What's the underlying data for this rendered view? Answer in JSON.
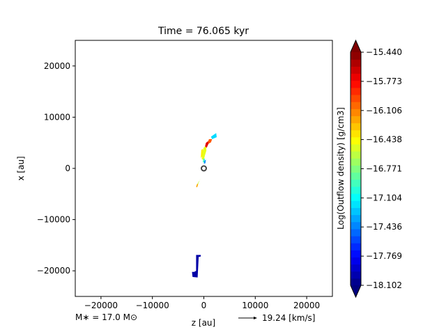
{
  "chart_data": {
    "type": "contour",
    "title": "Time = 76.065 kyr",
    "xlabel": "z [au]",
    "ylabel": "x [au]",
    "xlim": [
      -25000,
      25000
    ],
    "ylim": [
      -25000,
      25000
    ],
    "xticks": [
      -20000,
      -10000,
      0,
      10000,
      20000
    ],
    "yticks": [
      -20000,
      -10000,
      0,
      10000,
      20000
    ],
    "xtick_labels": [
      "−20000",
      "−10000",
      "0",
      "10000",
      "20000"
    ],
    "ytick_labels": [
      "−20000",
      "−10000",
      "0",
      "10000",
      "20000"
    ],
    "grid": false,
    "colorbar": {
      "label": "Log(Outflow density) [g/cm3]",
      "min": -18.102,
      "max": -15.44,
      "colormap": "jet",
      "levels": 33,
      "ticks": [
        -18.102,
        -17.769,
        -17.436,
        -17.104,
        -16.771,
        -16.438,
        -16.106,
        -15.773,
        -15.44
      ],
      "tick_labels": [
        "−18.102",
        "−17.769",
        "−17.436",
        "−17.104",
        "−16.771",
        "−16.438",
        "−16.106",
        "−15.773",
        "−15.440"
      ]
    },
    "star": {
      "z": 0,
      "x": 0
    },
    "outflow_regions": [
      {
        "value": -17.2,
        "points": [
          [
            1400,
            6200
          ],
          [
            2400,
            6900
          ],
          [
            2500,
            6100
          ],
          [
            1600,
            5700
          ]
        ]
      },
      {
        "value": -16.0,
        "points": [
          [
            700,
            5000
          ],
          [
            1000,
            5700
          ],
          [
            1600,
            5700
          ],
          [
            1400,
            5100
          ],
          [
            900,
            4800
          ]
        ]
      },
      {
        "value": -15.7,
        "points": [
          [
            200,
            4200
          ],
          [
            400,
            5000
          ],
          [
            800,
            5300
          ],
          [
            900,
            4800
          ],
          [
            600,
            4100
          ],
          [
            300,
            3900
          ]
        ]
      },
      {
        "value": -16.5,
        "points": [
          [
            -400,
            1800
          ],
          [
            -300,
            3200
          ],
          [
            0,
            4100
          ],
          [
            400,
            4300
          ],
          [
            500,
            3500
          ],
          [
            200,
            2500
          ],
          [
            0,
            1600
          ]
        ]
      },
      {
        "value": -16.4,
        "points": [
          [
            -600,
            2000
          ],
          [
            -500,
            3600
          ],
          [
            -200,
            3800
          ],
          [
            -300,
            2400
          ]
        ]
      },
      {
        "value": -16.95,
        "points": [
          [
            -200,
            1200
          ],
          [
            -100,
            1900
          ],
          [
            200,
            1900
          ],
          [
            100,
            1200
          ]
        ]
      },
      {
        "value": -17.4,
        "points": [
          [
            0,
            900
          ],
          [
            100,
            1500
          ],
          [
            400,
            1700
          ],
          [
            300,
            1000
          ]
        ]
      },
      {
        "value": -16.6,
        "points": [
          [
            -1500,
            -3500
          ],
          [
            -1000,
            -2600
          ],
          [
            -500,
            -1900
          ],
          [
            -800,
            -2300
          ],
          [
            -1200,
            -3300
          ]
        ]
      },
      {
        "value": -16.2,
        "points": [
          [
            -1500,
            -3600
          ],
          [
            -1300,
            -3000
          ],
          [
            -1100,
            -3100
          ],
          [
            -1300,
            -3700
          ]
        ]
      },
      {
        "value": -18.0,
        "points": [
          [
            -2300,
            -20200
          ],
          [
            -2200,
            -21200
          ],
          [
            -1200,
            -21300
          ],
          [
            -1000,
            -17300
          ],
          [
            -600,
            -17200
          ],
          [
            -600,
            -16900
          ],
          [
            -1500,
            -16900
          ],
          [
            -1500,
            -20000
          ],
          [
            -1900,
            -20200
          ]
        ]
      }
    ],
    "footer_left": "M$_*$ = 17.0 M$_\\odot$",
    "footer_left_text": "M∗ = 17.0 M⊙",
    "arrow_label": "19.24 [km/s]"
  },
  "colors": {
    "star_marker": "#444444",
    "background": "#ffffff"
  }
}
